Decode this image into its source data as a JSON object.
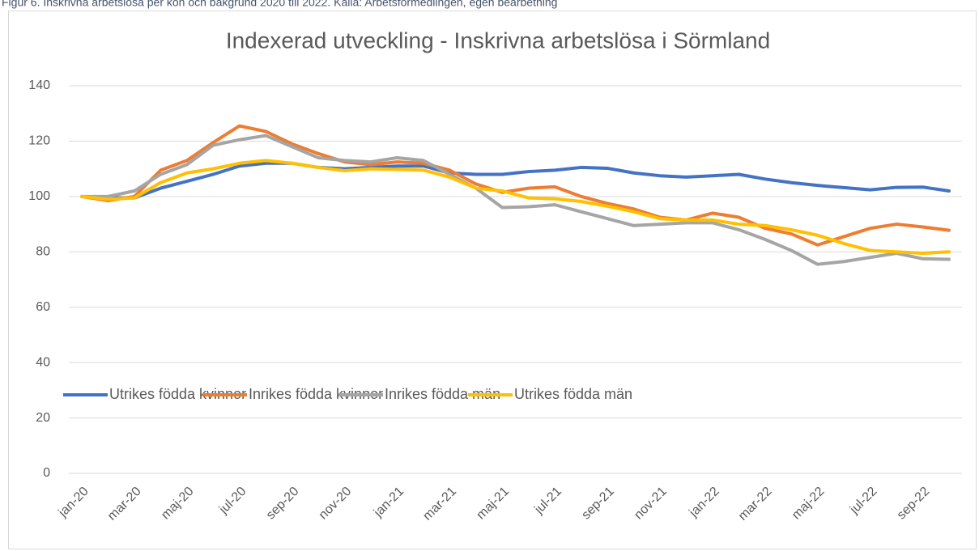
{
  "caption": "Figur 6. Inskrivna arbetslösa per kön och bakgrund 2020 till 2022. Källa: Arbetsförmedlingen, egen bearbetning",
  "chart_data": {
    "type": "line",
    "title": "Indexerad utveckling - Inskrivna arbetslösa i Sörmland",
    "categories": [
      "jan-20",
      null,
      "mar-20",
      null,
      "maj-20",
      null,
      "jul-20",
      null,
      "sep-20",
      null,
      "nov-20",
      null,
      "jan-21",
      null,
      "mar-21",
      null,
      "maj-21",
      null,
      "jul-21",
      null,
      "sep-21",
      null,
      "nov-21",
      null,
      "jan-22",
      null,
      "mar-22",
      null,
      "maj-22",
      null,
      "jul-22",
      null,
      "sep-22",
      null
    ],
    "series": [
      {
        "name": "Utrikes födda kvinnor",
        "color": "#4472c4",
        "values": [
          100,
          99.5,
          99.5,
          103,
          105.5,
          108,
          111,
          112,
          112,
          110.5,
          110,
          110.5,
          111,
          111,
          108.5,
          108,
          108,
          109,
          109.5,
          110.5,
          110.2,
          108.5,
          107.5,
          107,
          107.5,
          108,
          106.3,
          105,
          104,
          103.2,
          102.4,
          103.3,
          103.4,
          102
        ]
      },
      {
        "name": "Inrikes födda kvinnor",
        "color": "#ed7d31",
        "values": [
          100,
          98.5,
          100,
          109.5,
          113,
          119.5,
          125.5,
          123.5,
          119,
          115.5,
          112.5,
          111.5,
          112.5,
          112,
          109.5,
          104.5,
          101.5,
          103,
          103.5,
          100,
          97.5,
          95.5,
          92.5,
          91.5,
          94,
          92.5,
          88.5,
          86.5,
          82.5,
          85.5,
          88.5,
          90,
          89,
          87.8
        ]
      },
      {
        "name": "Inrikes födda män",
        "color": "#a5a5a5",
        "values": [
          100,
          100,
          102,
          108,
          111.5,
          118.5,
          120.5,
          122,
          118,
          114,
          113,
          112.5,
          114,
          113,
          108,
          103,
          96,
          96.3,
          97,
          94.5,
          92,
          89.5,
          90,
          90.5,
          90.5,
          88,
          84.5,
          80.5,
          75.5,
          76.5,
          78,
          79.5,
          77.5,
          77.3
        ]
      },
      {
        "name": "Utrikes födda män",
        "color": "#ffc000",
        "values": [
          100,
          99,
          99.5,
          105,
          108.5,
          110,
          112,
          113,
          112,
          110.5,
          109.3,
          110,
          109.8,
          109.5,
          107,
          103,
          102,
          99.5,
          99.2,
          98.2,
          96.5,
          94.5,
          92,
          91.5,
          91.5,
          90,
          89.5,
          88,
          86,
          83,
          80.5,
          80,
          79.5,
          80
        ]
      }
    ],
    "ylim": [
      0,
      140
    ],
    "yticks": [
      0,
      20,
      40,
      60,
      80,
      100,
      120,
      140
    ],
    "grid": true
  }
}
